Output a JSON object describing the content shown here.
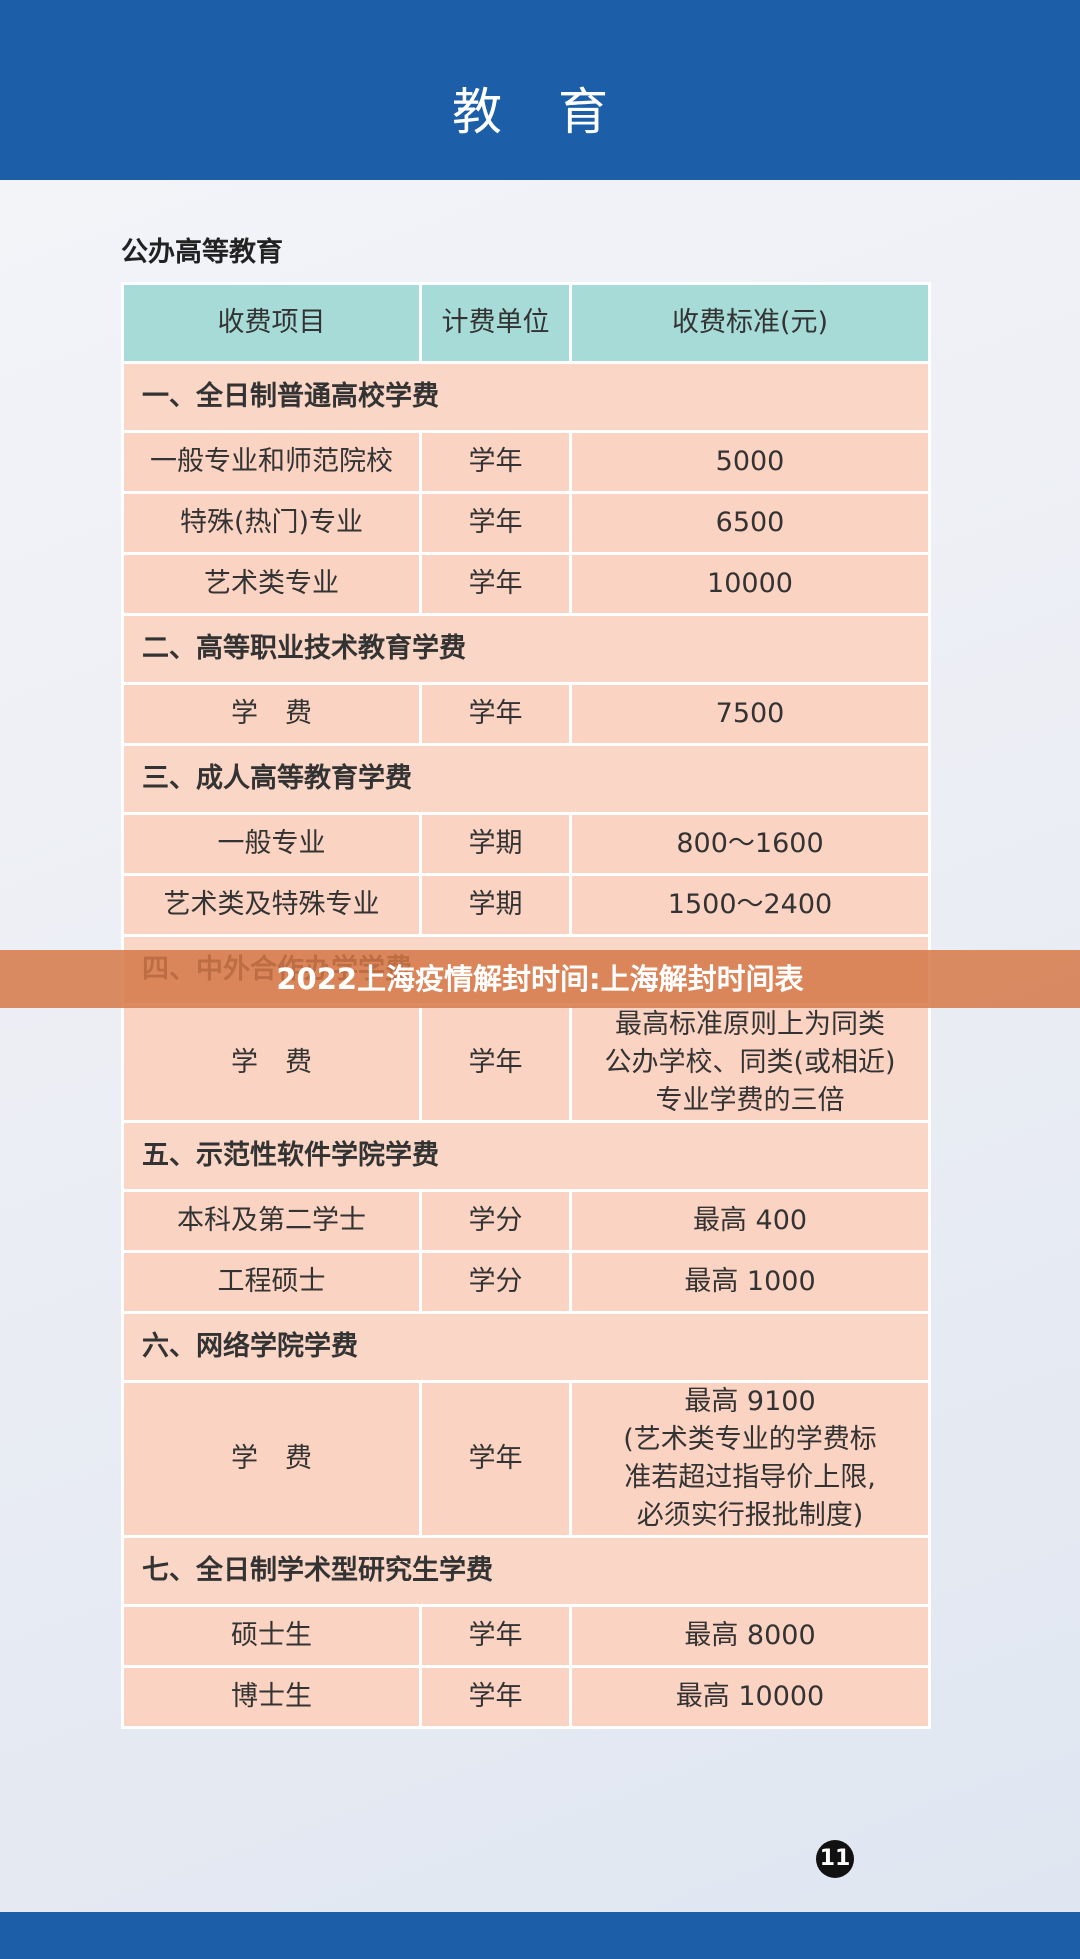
{
  "header": {
    "title": "教 育"
  },
  "section_title": "公办高等教育",
  "table": {
    "columns": [
      "收费项目",
      "计费单位",
      "收费标准(元)"
    ],
    "groups": [
      {
        "title": "一、全日制普通高校学费",
        "rows": [
          [
            "一般专业和师范院校",
            "学年",
            "5000"
          ],
          [
            "特殊(热门)专业",
            "学年",
            "6500"
          ],
          [
            "艺术类专业",
            "学年",
            "10000"
          ]
        ]
      },
      {
        "title": "二、高等职业技术教育学费",
        "rows": [
          [
            "学　费",
            "学年",
            "7500"
          ]
        ]
      },
      {
        "title": "三、成人高等教育学费",
        "rows": [
          [
            "一般专业",
            "学期",
            "800～1600"
          ],
          [
            "艺术类及特殊专业",
            "学期",
            "1500～2400"
          ]
        ]
      },
      {
        "title": "四、中外合作办学学费",
        "rows": [
          [
            "学　费",
            "学年",
            [
              "最高标准原则上为同类",
              "公办学校、同类(或相近)",
              "专业学费的三倍"
            ]
          ]
        ]
      },
      {
        "title": "五、示范性软件学院学费",
        "rows": [
          [
            "本科及第二学士",
            "学分",
            "最高 400"
          ],
          [
            "工程硕士",
            "学分",
            "最高 1000"
          ]
        ]
      },
      {
        "title": "六、网络学院学费",
        "rows": [
          [
            "学　费",
            "学年",
            [
              "最高 9100",
              "(艺术类专业的学费标",
              "准若超过指导价上限,",
              "必须实行报批制度)"
            ]
          ]
        ]
      },
      {
        "title": "七、全日制学术型研究生学费",
        "rows": [
          [
            "硕士生",
            "学年",
            "最高 8000"
          ],
          [
            "博士生",
            "学年",
            "最高 10000"
          ]
        ]
      }
    ]
  },
  "banner": "2022上海疫情解封时间:上海解封时间表",
  "page_number": "11"
}
